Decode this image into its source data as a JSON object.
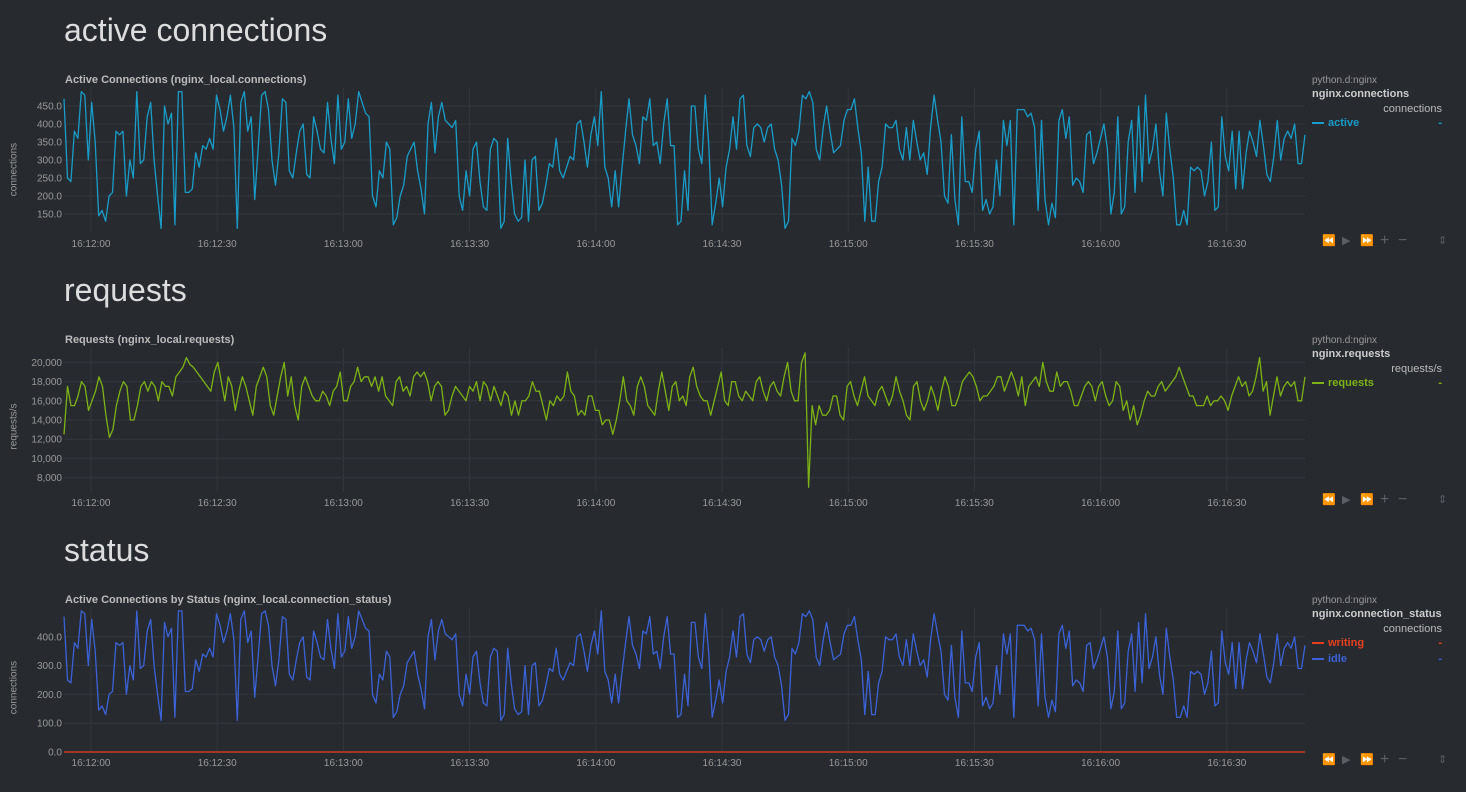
{
  "sections": [
    {
      "title": "active connections",
      "chart_title": "Active Connections (nginx_local.connections)",
      "ylabel": "connections",
      "legend": {
        "context": "python.d:nginx",
        "chart_id": "nginx.connections",
        "units": "connections",
        "items": [
          {
            "name": "active",
            "color": "#1a9cc8",
            "value": "-"
          }
        ]
      }
    },
    {
      "title": "requests",
      "chart_title": "Requests (nginx_local.requests)",
      "ylabel": "requests/s",
      "legend": {
        "context": "python.d:nginx",
        "chart_id": "nginx.requests",
        "units": "requests/s",
        "items": [
          {
            "name": "requests",
            "color": "#7eb216",
            "value": "-"
          }
        ]
      }
    },
    {
      "title": "status",
      "chart_title": "Active Connections by Status (nginx_local.connection_status)",
      "ylabel": "connections",
      "legend": {
        "context": "python.d:nginx",
        "chart_id": "nginx.connection_status",
        "units": "connections",
        "items": [
          {
            "name": "writing",
            "color": "#e8401f",
            "value": "-"
          },
          {
            "name": "idle",
            "color": "#3b62d6",
            "value": "-"
          }
        ]
      }
    }
  ],
  "toolbar_icons": [
    "rewind-icon",
    "play-icon",
    "fast-forward-icon",
    "zoom-in-icon",
    "zoom-out-icon",
    "resize-icon"
  ],
  "chart_data": [
    {
      "type": "line",
      "title": "Active Connections (nginx_local.connections)",
      "ylabel": "connections",
      "x_ticks": [
        "16:12:00",
        "16:12:30",
        "16:13:00",
        "16:13:30",
        "16:14:00",
        "16:14:30",
        "16:15:00",
        "16:15:30",
        "16:16:00",
        "16:16:30"
      ],
      "y_ticks": [
        "150.0",
        "200.0",
        "250.0",
        "300.0",
        "350.0",
        "400.0",
        "450.0"
      ],
      "y_tick_values": [
        150,
        200,
        250,
        300,
        350,
        400,
        450
      ],
      "ylim": [
        100,
        500
      ],
      "series": [
        {
          "name": "active",
          "color": "#1a9cc8",
          "values": [
            470,
            250,
            240,
            380,
            360,
            490,
            480,
            300,
            460,
            350,
            145,
            160,
            130,
            200,
            210,
            380,
            370,
            380,
            200,
            300,
            250,
            490,
            290,
            300,
            420,
            460,
            300,
            200,
            110,
            450,
            400,
            430,
            120,
            490,
            490,
            210,
            210,
            220,
            320,
            280,
            340,
            330,
            360,
            330,
            480,
            440,
            380,
            420,
            480,
            390,
            110,
            460,
            490,
            380,
            420,
            190,
            330,
            480,
            490,
            440,
            300,
            230,
            320,
            470,
            460,
            270,
            250,
            320,
            380,
            400,
            260,
            250,
            420,
            380,
            330,
            320,
            460,
            360,
            290,
            480,
            330,
            350,
            470,
            360,
            400,
            490,
            460,
            430,
            420,
            200,
            170,
            270,
            250,
            350,
            330,
            120,
            140,
            200,
            230,
            310,
            330,
            350,
            270,
            220,
            150,
            400,
            460,
            320,
            420,
            460,
            410,
            400,
            390,
            410,
            200,
            160,
            270,
            200,
            330,
            350,
            240,
            170,
            160,
            330,
            360,
            350,
            110,
            130,
            360,
            240,
            150,
            130,
            140,
            300,
            130,
            300,
            310,
            160,
            180,
            230,
            290,
            280,
            360,
            270,
            250,
            280,
            310,
            300,
            400,
            410,
            350,
            280,
            370,
            420,
            340,
            490,
            280,
            250,
            170,
            270,
            170,
            280,
            380,
            470,
            370,
            340,
            290,
            420,
            410,
            470,
            340,
            350,
            290,
            400,
            470,
            340,
            340,
            120,
            130,
            270,
            160,
            450,
            450,
            330,
            290,
            480,
            340,
            120,
            180,
            250,
            170,
            280,
            330,
            420,
            330,
            470,
            480,
            340,
            310,
            390,
            400,
            390,
            350,
            390,
            400,
            330,
            300,
            230,
            110,
            130,
            360,
            340,
            380,
            480,
            470,
            490,
            460,
            330,
            300,
            390,
            450,
            380,
            320,
            330,
            340,
            410,
            440,
            440,
            470,
            390,
            320,
            130,
            280,
            130,
            130,
            240,
            280,
            400,
            390,
            390,
            410,
            330,
            300,
            390,
            300,
            410,
            350,
            300,
            320,
            260,
            390,
            480,
            410,
            350,
            200,
            180,
            370,
            190,
            120,
            420,
            240,
            240,
            210,
            330,
            380,
            160,
            190,
            150,
            170,
            300,
            200,
            410,
            340,
            410,
            120,
            440,
            440,
            440,
            420,
            430,
            390,
            160,
            410,
            190,
            120,
            180,
            140,
            410,
            440,
            360,
            420,
            230,
            250,
            240,
            210,
            370,
            380,
            290,
            320,
            360,
            400,
            330,
            150,
            210,
            420,
            150,
            170,
            350,
            410,
            210,
            450,
            240,
            480,
            290,
            330,
            400,
            270,
            200,
            430,
            330,
            250,
            120,
            120,
            160,
            120,
            280,
            270,
            280,
            270,
            200,
            240,
            350,
            160,
            170,
            420,
            310,
            270,
            380,
            220,
            380,
            220,
            320,
            380,
            350,
            310,
            410,
            340,
            260,
            240,
            310,
            410,
            300,
            360,
            380,
            360,
            400,
            290,
            290,
            370
          ]
        }
      ]
    },
    {
      "type": "line",
      "title": "Requests (nginx_local.requests)",
      "ylabel": "requests/s",
      "x_ticks": [
        "16:12:00",
        "16:12:30",
        "16:13:00",
        "16:13:30",
        "16:14:00",
        "16:14:30",
        "16:15:00",
        "16:15:30",
        "16:16:00",
        "16:16:30"
      ],
      "y_ticks": [
        "8,000",
        "10,000",
        "12,000",
        "14,000",
        "16,000",
        "18,000",
        "20,000"
      ],
      "y_tick_values": [
        8000,
        10000,
        12000,
        14000,
        16000,
        18000,
        20000
      ],
      "ylim": [
        6500,
        21500
      ],
      "series": [
        {
          "name": "requests",
          "color": "#7eb216",
          "values": [
            12500,
            17500,
            15500,
            15500,
            16500,
            18000,
            17500,
            15000,
            16000,
            17000,
            18500,
            17500,
            14500,
            12200,
            13000,
            15500,
            17000,
            18000,
            17500,
            14000,
            14000,
            15500,
            17500,
            18000,
            17000,
            18000,
            17500,
            16000,
            18000,
            17500,
            17500,
            16500,
            18500,
            19000,
            19500,
            20500,
            19800,
            19500,
            19000,
            18500,
            18000,
            17500,
            17000,
            19000,
            20000,
            18000,
            16000,
            18500,
            17500,
            15000,
            17000,
            18500,
            17500,
            16000,
            14500,
            17500,
            18500,
            19500,
            18500,
            15500,
            14500,
            16500,
            18500,
            20000,
            16500,
            18500,
            15500,
            14000,
            17500,
            18500,
            17500,
            16500,
            16000,
            16000,
            17000,
            16500,
            15500,
            17000,
            17500,
            19000,
            16000,
            16000,
            17500,
            18000,
            19500,
            18000,
            18500,
            18500,
            17500,
            18500,
            17000,
            18500,
            16500,
            16000,
            15500,
            18000,
            18500,
            17000,
            17500,
            16500,
            18500,
            19000,
            18500,
            19000,
            18000,
            16000,
            17500,
            18000,
            17500,
            14500,
            15000,
            16500,
            17500,
            17000,
            16500,
            16000,
            17500,
            17000,
            18000,
            16000,
            18000,
            17500,
            16000,
            17500,
            16500,
            15500,
            17000,
            16500,
            14500,
            16000,
            14500,
            16000,
            16000,
            16500,
            18000,
            17000,
            17000,
            15500,
            14000,
            16000,
            15500,
            16500,
            16000,
            16500,
            19000,
            17000,
            16500,
            14500,
            15000,
            14500,
            16500,
            16500,
            15000,
            15000,
            13500,
            14000,
            14000,
            12500,
            14000,
            16000,
            18500,
            16000,
            15500,
            14500,
            17500,
            18500,
            17500,
            15500,
            15000,
            14500,
            17000,
            19000,
            17000,
            15000,
            17500,
            18000,
            16000,
            16500,
            15500,
            18500,
            19500,
            17500,
            16500,
            16000,
            16000,
            14500,
            16000,
            17500,
            19000,
            16000,
            15500,
            18000,
            18000,
            16500,
            16000,
            17000,
            16500,
            16000,
            18000,
            18500,
            17000,
            16000,
            17500,
            18000,
            17000,
            16500,
            18500,
            20000,
            17000,
            16000,
            16000,
            20000,
            21000,
            7000,
            15500,
            13500,
            15500,
            14500,
            14500,
            15000,
            16500,
            16500,
            14500,
            14000,
            17500,
            18000,
            16500,
            15500,
            17000,
            18500,
            16500,
            16000,
            15500,
            17000,
            17500,
            16500,
            15500,
            16500,
            18500,
            17000,
            16000,
            14500,
            14000,
            17500,
            18000,
            16000,
            15000,
            16000,
            17500,
            16500,
            15000,
            17000,
            18500,
            17500,
            15500,
            15500,
            16500,
            18000,
            18500,
            19000,
            18500,
            17500,
            16000,
            16500,
            16500,
            17000,
            17500,
            18500,
            18500,
            17000,
            18000,
            19000,
            18000,
            16500,
            18500,
            15500,
            17500,
            18000,
            18500,
            17500,
            20000,
            18000,
            17000,
            17000,
            19000,
            17500,
            18000,
            18000,
            17000,
            15500,
            15500,
            16500,
            17500,
            18000,
            17500,
            16000,
            17500,
            18000,
            16500,
            15500,
            16000,
            18000,
            17500,
            15000,
            16000,
            14000,
            15500,
            13500,
            14500,
            16000,
            17000,
            16500,
            16500,
            17500,
            18000,
            17000,
            17500,
            18000,
            18500,
            19500,
            18500,
            17500,
            16500,
            16500,
            15500,
            15500,
            15500,
            16500,
            15500,
            16000,
            16000,
            16500,
            16000,
            15000,
            16500,
            17500,
            18500,
            17500,
            18000,
            16500,
            17000,
            18500,
            20500,
            17000,
            18000,
            14500,
            16500,
            18500,
            16500,
            17500,
            18000,
            17500,
            18000,
            16000,
            16000,
            18500
          ]
        }
      ]
    },
    {
      "type": "line",
      "title": "Active Connections by Status (nginx_local.connection_status)",
      "ylabel": "connections",
      "x_ticks": [
        "16:12:00",
        "16:12:30",
        "16:13:00",
        "16:13:30",
        "16:14:00",
        "16:14:30",
        "16:15:00",
        "16:15:30",
        "16:16:00",
        "16:16:30"
      ],
      "y_ticks": [
        "0.0",
        "100.0",
        "200.0",
        "300.0",
        "400.0"
      ],
      "y_tick_values": [
        0,
        100,
        200,
        300,
        400
      ],
      "ylim": [
        0,
        500
      ],
      "series": [
        {
          "name": "writing",
          "color": "#e8401f",
          "values": [
            0,
            0
          ]
        },
        {
          "name": "idle",
          "color": "#3b62d6",
          "same_as_series": "active"
        }
      ]
    }
  ]
}
